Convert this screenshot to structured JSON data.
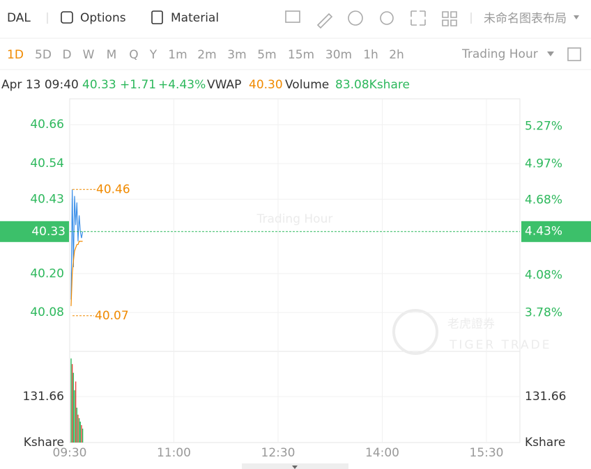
{
  "toolbar": {
    "symbol": "DAL",
    "options": "Options",
    "material": "Material",
    "layout_name": "未命名图表布局"
  },
  "periods": {
    "items": [
      "1D",
      "5D",
      "D",
      "W",
      "M",
      "Q",
      "Y",
      "1m",
      "2m",
      "3m",
      "5m",
      "15m",
      "30m",
      "1h",
      "2h"
    ],
    "active": "1D",
    "session": "Trading Hour"
  },
  "quote": {
    "time": "Apr 13 09:40",
    "price": "40.33",
    "change": "+1.71",
    "change_pct": "+4.43%",
    "vwap_label": "VWAP",
    "vwap": "40.30",
    "volume_label": "Volume",
    "volume": "83.08Kshare"
  },
  "chart": {
    "watermark": "Trading Hour",
    "logo_cn": "老虎證券",
    "logo_en": "TIGER TRADE",
    "ylim": [
      39.96,
      40.74
    ],
    "yticks": [
      40.66,
      40.54,
      40.43,
      {
        "value": 40.2,
        "label": "40.20"
      },
      40.08
    ],
    "y2lim": [
      3.47,
      5.49
    ],
    "y2ticks": [
      {
        "value": 5.27,
        "label": "5.27%"
      },
      {
        "value": 4.97,
        "label": "4.97%"
      },
      {
        "value": 4.68,
        "label": "4.68%"
      },
      {
        "value": 4.08,
        "label": "4.08%"
      },
      {
        "value": 3.78,
        "label": "3.78%"
      }
    ],
    "vlim": [
      0,
      261.3
    ],
    "vticks": [
      131.66
    ],
    "volume_unit": "Kshare",
    "times": [
      "09:30",
      "11:00",
      "12:30",
      "14:00",
      "15:30"
    ],
    "last_price": 40.33,
    "last_pct": {
      "value": 4.43,
      "label": "4.43%"
    },
    "high": 40.46,
    "low": 40.07,
    "price": {
      "color": "#3b8fe8",
      "values": [
        40.12,
        40.46,
        40.22,
        40.44,
        40.35,
        40.42,
        40.3,
        40.38,
        40.33,
        40.31,
        40.33
      ]
    },
    "vwap": {
      "color": "#f08a00",
      "values": [
        40.1,
        40.2,
        40.24,
        40.27,
        40.28,
        40.29,
        40.29,
        40.3,
        40.3,
        40.3,
        40.3
      ]
    },
    "volume": {
      "up_color": "#2db85c",
      "down_color": "#e8453c",
      "values": [
        241,
        225,
        200,
        150,
        175,
        100,
        80,
        70,
        60,
        50,
        40
      ],
      "up": [
        true,
        false,
        true,
        true,
        false,
        true,
        false,
        true,
        true,
        false,
        true
      ]
    }
  }
}
